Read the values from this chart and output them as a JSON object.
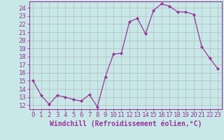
{
  "x": [
    0,
    1,
    2,
    3,
    4,
    5,
    6,
    7,
    8,
    9,
    10,
    11,
    12,
    13,
    14,
    15,
    16,
    17,
    18,
    19,
    20,
    21,
    22,
    23
  ],
  "y": [
    15,
    13.2,
    12.1,
    13.2,
    13.0,
    12.7,
    12.5,
    13.3,
    11.8,
    15.5,
    18.3,
    18.4,
    22.3,
    22.7,
    20.8,
    23.7,
    24.5,
    24.2,
    23.5,
    23.5,
    23.2,
    19.2,
    17.8,
    16.5
  ],
  "line_color": "#993399",
  "marker": "D",
  "markersize": 2.0,
  "linewidth": 0.9,
  "xlabel": "Windchill (Refroidissement éolien,°C)",
  "xlabel_fontsize": 7,
  "ytick_labels": [
    "12",
    "13",
    "14",
    "15",
    "16",
    "17",
    "18",
    "19",
    "20",
    "21",
    "22",
    "23",
    "24"
  ],
  "ytick_values": [
    12,
    13,
    14,
    15,
    16,
    17,
    18,
    19,
    20,
    21,
    22,
    23,
    24
  ],
  "xlim": [
    -0.5,
    23.5
  ],
  "ylim": [
    11.5,
    24.8
  ],
  "bg_color": "#c8e8e8",
  "grid_color": "#aaaaaa",
  "tick_color": "#993399",
  "tick_fontsize": 6.5
}
